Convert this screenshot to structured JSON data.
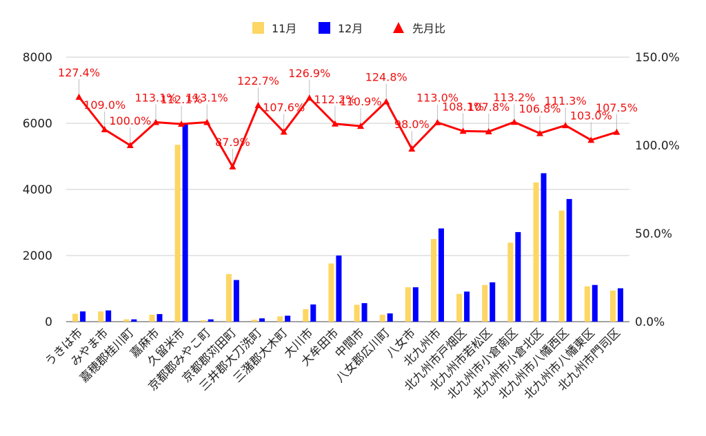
{
  "chart_data": {
    "type": "bar",
    "categories": [
      "うきは市",
      "みやま市",
      "嘉穂郡桂川町",
      "嘉麻市",
      "久留米市",
      "京都郡みやこ町",
      "京都郡苅田町",
      "三井郡大刀洗町",
      "三潴郡大木町",
      "大川市",
      "大牟田市",
      "中間市",
      "八女郡広川町",
      "八女市",
      "北九州市",
      "北九州市戸畑区",
      "北九州市若松区",
      "北九州市小倉南区",
      "北九州市小倉北区",
      "北九州市八幡西区",
      "北九州市八幡東区",
      "北九州市門司区"
    ],
    "series": [
      {
        "name": "11月",
        "color": "#fdd663",
        "values": [
          240,
          310,
          70,
          210,
          5350,
          40,
          1440,
          60,
          160,
          380,
          1760,
          510,
          210,
          1040,
          2500,
          840,
          1110,
          2390,
          4210,
          3360,
          1070,
          940
        ]
      },
      {
        "name": "12月",
        "color": "#0000ff",
        "values": [
          310,
          340,
          70,
          230,
          6000,
          70,
          1260,
          100,
          180,
          520,
          2000,
          560,
          250,
          1040,
          2820,
          910,
          1190,
          2710,
          4490,
          3710,
          1110,
          1010
        ]
      },
      {
        "name": "先月比",
        "color": "#ff0000",
        "type": "line",
        "axis": "right",
        "values": [
          127.4,
          109.0,
          100.0,
          113.1,
          112.1,
          113.1,
          87.9,
          122.7,
          107.6,
          126.9,
          112.2,
          110.9,
          124.8,
          98.0,
          113.0,
          108.1,
          107.8,
          113.2,
          106.8,
          111.3,
          103.0,
          107.5
        ],
        "labels": [
          "127.4%",
          "109.0%",
          "100.0%",
          "113.1%",
          "112.1%",
          "113.1%",
          "87.9%",
          "122.7%",
          "107.6%",
          "126.9%",
          "112.2%",
          "110.9%",
          "124.8%",
          "98.0%",
          "113.0%",
          "108.1%",
          "107.8%",
          "113.2%",
          "106.8%",
          "111.3%",
          "103.0%",
          "107.5%"
        ]
      }
    ],
    "y_left": {
      "min": 0,
      "max": 8000,
      "ticks": [
        "0",
        "2000",
        "4000",
        "6000",
        "8000"
      ]
    },
    "y_right": {
      "min": 0,
      "max": 150,
      "ticks": [
        "0.0%",
        "50.0%",
        "100.0%",
        "150.0%"
      ]
    },
    "legend_position": "top",
    "grid": true
  }
}
